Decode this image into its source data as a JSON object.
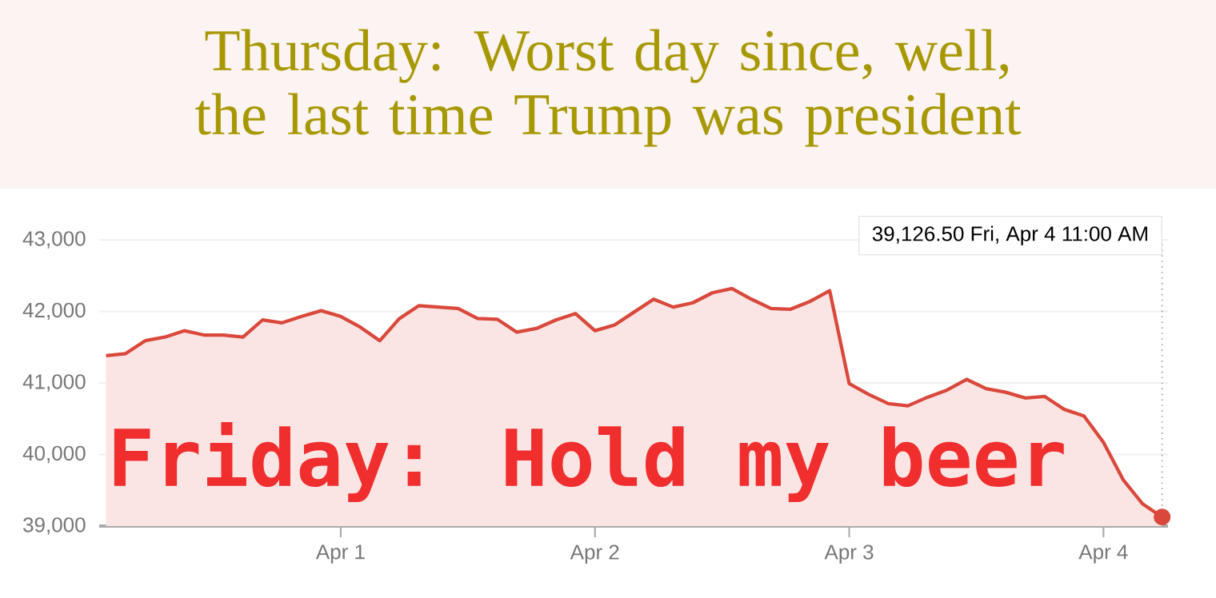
{
  "chart_data": {
    "type": "area",
    "title": "Thursday: Worst day since, well, the last time Trump was president",
    "categories": [
      null,
      null,
      null,
      null,
      null,
      null,
      null,
      null,
      null,
      null,
      null,
      null,
      "Apr 1",
      null,
      null,
      null,
      null,
      null,
      null,
      null,
      null,
      null,
      null,
      null,
      null,
      "Apr 2",
      null,
      null,
      null,
      null,
      null,
      null,
      null,
      null,
      null,
      null,
      null,
      null,
      "Apr 3",
      null,
      null,
      null,
      null,
      null,
      null,
      null,
      null,
      null,
      null,
      null,
      null,
      "Apr 4",
      null,
      null,
      null
    ],
    "series": [
      {
        "color": "#d9483b",
        "values": [
          41380,
          41410,
          41590,
          41640,
          41730,
          41670,
          41670,
          41640,
          41880,
          41840,
          41930,
          42010,
          41930,
          41780,
          41590,
          41900,
          42080,
          42060,
          42040,
          41900,
          41890,
          41710,
          41760,
          41880,
          41970,
          41730,
          41810,
          41990,
          42170,
          42060,
          42120,
          42260,
          42320,
          42170,
          42040,
          42030,
          42140,
          42290,
          40990,
          40840,
          40710,
          40680,
          40800,
          40900,
          41050,
          40920,
          40870,
          40790,
          40810,
          40630,
          40540,
          40170,
          39650,
          39310,
          39126.5
        ]
      }
    ],
    "ylim": [
      39000,
      43000
    ],
    "yticks": [
      {
        "value": 39000,
        "label": "39,000"
      },
      {
        "value": 40000,
        "label": "40,000"
      },
      {
        "value": 41000,
        "label": "41,000"
      },
      {
        "value": 42000,
        "label": "42,000"
      },
      {
        "value": 43000,
        "label": "43,000"
      }
    ],
    "grid": "y",
    "annotations": [
      "39,126.50  Fri, Apr 4 11:00 AM",
      "Friday: Hold my beer"
    ]
  }
}
